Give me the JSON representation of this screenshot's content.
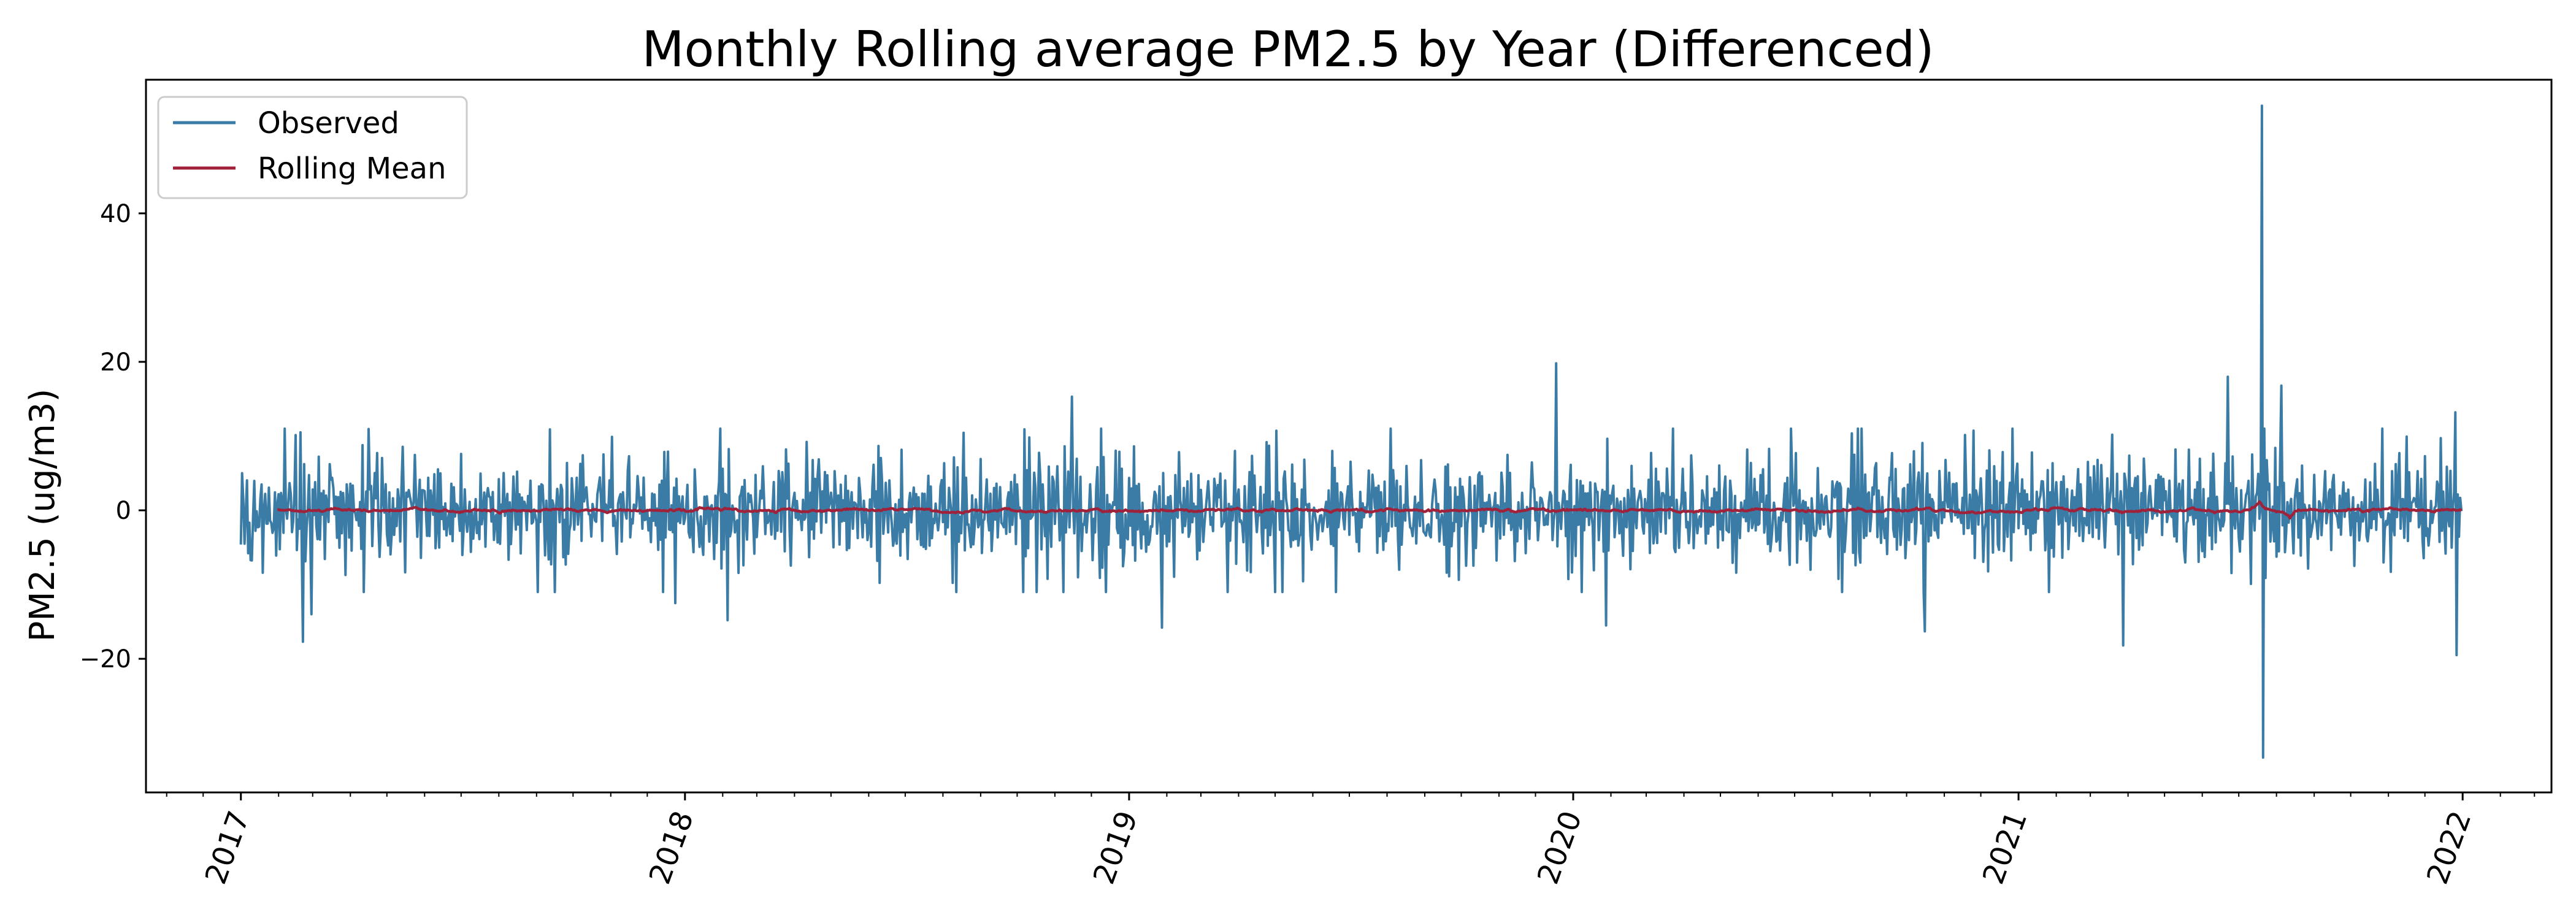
{
  "chart_data": {
    "type": "line",
    "title": "Monthly Rolling average PM2.5 by Year (Differenced)",
    "xlabel": "",
    "ylabel": "PM2.5 (ug/m3)",
    "x_range": [
      "2017-01-01",
      "2021-12-31"
    ],
    "xlim": [
      "2016-10-15",
      "2022-03-15"
    ],
    "ylim": [
      -38,
      58
    ],
    "x_tick_labels": [
      "2017",
      "2018",
      "2019",
      "2020",
      "2021",
      "2022"
    ],
    "x_tick_dates": [
      "2017-01-01",
      "2018-01-01",
      "2019-01-01",
      "2020-01-01",
      "2021-01-01",
      "2022-01-01"
    ],
    "y_ticks": [
      -20,
      0,
      20,
      40
    ],
    "y_tick_labels": [
      "−20",
      "0",
      "20",
      "40"
    ],
    "grid": false,
    "legend_position": "top-left",
    "series": [
      {
        "name": "Observed",
        "color": "#3a7ca5",
        "frequency": "daily",
        "typical_amplitude": 3.5,
        "notable_points": [
          {
            "date": "2017-01-02",
            "value": 5.0
          },
          {
            "date": "2017-01-04",
            "value": -4.5
          },
          {
            "date": "2017-02-19",
            "value": 10.5
          },
          {
            "date": "2017-02-21",
            "value": -17.7
          },
          {
            "date": "2017-02-28",
            "value": -14.0
          },
          {
            "date": "2017-12-24",
            "value": -12.5
          },
          {
            "date": "2018-01-30",
            "value": 11.0
          },
          {
            "date": "2018-02-05",
            "value": -14.8
          },
          {
            "date": "2018-11-15",
            "value": 15.3
          },
          {
            "date": "2019-01-28",
            "value": -15.8
          },
          {
            "date": "2019-12-18",
            "value": 19.8
          },
          {
            "date": "2020-01-28",
            "value": -15.5
          },
          {
            "date": "2020-10-16",
            "value": -16.3
          },
          {
            "date": "2021-03-28",
            "value": -18.2
          },
          {
            "date": "2021-06-22",
            "value": 18.0
          },
          {
            "date": "2021-07-20",
            "value": 54.5
          },
          {
            "date": "2021-07-21",
            "value": -33.3
          },
          {
            "date": "2021-08-05",
            "value": 16.8
          },
          {
            "date": "2021-12-26",
            "value": 13.2
          },
          {
            "date": "2021-12-27",
            "value": -19.5
          }
        ]
      },
      {
        "name": "Rolling Mean",
        "color": "#a0223a",
        "start_date": "2017-01-31",
        "end_date": "2021-12-31",
        "typical_amplitude": 0.2,
        "notable_points": [
          {
            "date": "2021-07-18",
            "value": 1.2
          },
          {
            "date": "2021-08-12",
            "value": -1.2
          }
        ]
      }
    ]
  }
}
